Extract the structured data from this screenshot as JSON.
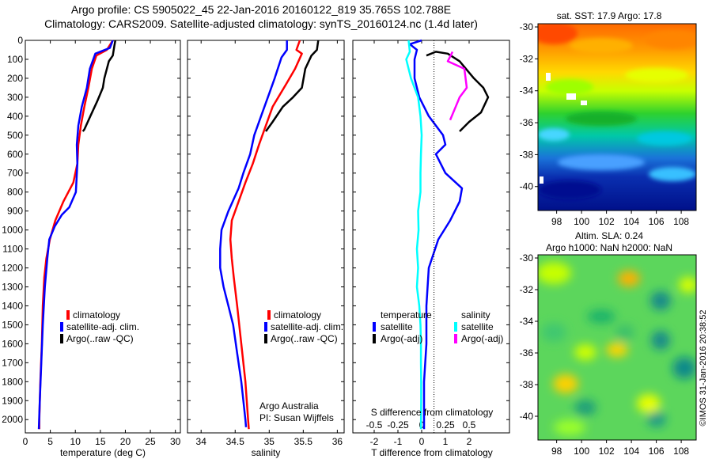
{
  "header": {
    "line1": "Argo profile: CS 5905022_45 22-Jan-2016 20160122_819 35.765S 102.788E",
    "line2": "Climatology: CARS2009. Satellite-adjusted climatology: synTS_20160124.nc (1.4d later)"
  },
  "sst_title": "sat. SST: 17.9 Argo: 17.8",
  "sla_title1": "Altim. SLA: 0.24",
  "sla_title2": "Argo h1000: NaN h2000: NaN",
  "imos_stamp": "©IMOS 31-Jan-2016 20:38:52",
  "colors": {
    "climatology": "#ff0000",
    "satellite": "#0000ff",
    "argo": "#000000",
    "salinity_satellite": "#00ffff",
    "salinity_argo": "#ff00ff"
  },
  "chart_data": [
    {
      "type": "line",
      "xlabel": "temperature (deg C)",
      "ylabel": "",
      "xlim": [
        0,
        31
      ],
      "ylim": [
        2070,
        0
      ],
      "xticks": [
        0,
        5,
        10,
        15,
        20,
        25,
        30
      ],
      "yticks": [
        0,
        100,
        200,
        300,
        400,
        500,
        600,
        700,
        800,
        900,
        1000,
        1100,
        1200,
        1300,
        1400,
        1500,
        1600,
        1700,
        1800,
        1900,
        2000
      ],
      "legend": [
        "climatology",
        "satellite-adj. clim.",
        "Argo(..raw -QC)"
      ],
      "legend_location": "lower-center",
      "series": [
        {
          "name": "climatology",
          "color": "#ff0000",
          "points": [
            [
              17.5,
              0
            ],
            [
              16.3,
              50
            ],
            [
              14.2,
              80
            ],
            [
              13.3,
              150
            ],
            [
              12.6,
              250
            ],
            [
              11.8,
              350
            ],
            [
              11.1,
              450
            ],
            [
              10.6,
              550
            ],
            [
              10.4,
              650
            ],
            [
              9.6,
              750
            ],
            [
              7.6,
              850
            ],
            [
              6.0,
              950
            ],
            [
              4.9,
              1050
            ],
            [
              4.2,
              1150
            ],
            [
              3.8,
              1250
            ],
            [
              3.5,
              1400
            ],
            [
              3.3,
              1600
            ],
            [
              3.0,
              1800
            ],
            [
              2.8,
              2000
            ],
            [
              2.8,
              2050
            ]
          ]
        },
        {
          "name": "satellite-adj. clim.",
          "color": "#0000ff",
          "points": [
            [
              17.5,
              0
            ],
            [
              16.9,
              40
            ],
            [
              14.0,
              70
            ],
            [
              12.9,
              150
            ],
            [
              12.3,
              250
            ],
            [
              11.3,
              350
            ],
            [
              10.6,
              450
            ],
            [
              10.3,
              550
            ],
            [
              10.4,
              650
            ],
            [
              10.1,
              800
            ],
            [
              8.8,
              880
            ],
            [
              7.3,
              920
            ],
            [
              5.9,
              980
            ],
            [
              4.8,
              1050
            ],
            [
              4.4,
              1150
            ],
            [
              3.9,
              1300
            ],
            [
              3.5,
              1500
            ],
            [
              3.2,
              1700
            ],
            [
              2.9,
              1900
            ],
            [
              2.7,
              2050
            ]
          ]
        },
        {
          "name": "Argo(..raw -QC)",
          "color": "#000000",
          "points": [
            [
              18.0,
              0
            ],
            [
              17.8,
              30
            ],
            [
              17.5,
              80
            ],
            [
              16.7,
              110
            ],
            [
              15.8,
              200
            ],
            [
              15.5,
              250
            ],
            [
              14.4,
              320
            ],
            [
              13.0,
              400
            ],
            [
              11.8,
              470
            ],
            [
              11.5,
              480
            ]
          ]
        }
      ]
    },
    {
      "type": "line",
      "xlabel": "salinity",
      "ylabel": "",
      "xlim": [
        33.8,
        36.1
      ],
      "ylim": [
        2070,
        0
      ],
      "xticks": [
        34,
        34.5,
        35,
        35.5,
        36
      ],
      "legend": [
        "climatology",
        "satellite-adj. clim.",
        "Argo(..raw -QC)"
      ],
      "legend_location": "lower-center",
      "annotation": [
        "Argo Australia",
        "PI: Susan Wijffels"
      ],
      "series": [
        {
          "name": "climatology",
          "color": "#ff0000",
          "points": [
            [
              35.45,
              0
            ],
            [
              35.4,
              50
            ],
            [
              35.48,
              70
            ],
            [
              35.38,
              150
            ],
            [
              35.25,
              230
            ],
            [
              35.05,
              350
            ],
            [
              34.95,
              450
            ],
            [
              34.85,
              550
            ],
            [
              34.76,
              650
            ],
            [
              34.65,
              750
            ],
            [
              34.55,
              850
            ],
            [
              34.45,
              950
            ],
            [
              34.43,
              1050
            ],
            [
              34.45,
              1150
            ],
            [
              34.48,
              1250
            ],
            [
              34.53,
              1400
            ],
            [
              34.59,
              1600
            ],
            [
              34.65,
              1800
            ],
            [
              34.69,
              2000
            ],
            [
              34.7,
              2050
            ]
          ]
        },
        {
          "name": "satellite-adj. clim.",
          "color": "#0000ff",
          "points": [
            [
              35.26,
              0
            ],
            [
              35.26,
              50
            ],
            [
              35.18,
              90
            ],
            [
              35.08,
              200
            ],
            [
              34.98,
              300
            ],
            [
              34.88,
              400
            ],
            [
              34.78,
              500
            ],
            [
              34.72,
              600
            ],
            [
              34.62,
              700
            ],
            [
              34.55,
              780
            ],
            [
              34.4,
              900
            ],
            [
              34.3,
              1000
            ],
            [
              34.28,
              1100
            ],
            [
              34.28,
              1200
            ],
            [
              34.33,
              1300
            ],
            [
              34.4,
              1400
            ],
            [
              34.47,
              1500
            ],
            [
              34.53,
              1650
            ],
            [
              34.59,
              1800
            ],
            [
              34.65,
              2000
            ],
            [
              34.66,
              2040
            ]
          ]
        },
        {
          "name": "Argo(..raw -QC)",
          "color": "#000000",
          "points": [
            [
              35.72,
              0
            ],
            [
              35.7,
              50
            ],
            [
              35.62,
              80
            ],
            [
              35.53,
              150
            ],
            [
              35.48,
              250
            ],
            [
              35.35,
              300
            ],
            [
              35.2,
              350
            ],
            [
              35.05,
              430
            ],
            [
              34.95,
              480
            ]
          ]
        }
      ]
    },
    {
      "type": "line",
      "xlabel": "T difference from climatology",
      "ylabel": "",
      "xlim": [
        -2.9,
        3.7
      ],
      "ylim": [
        2070,
        0
      ],
      "xticks": [
        -2,
        -1,
        0,
        1,
        2
      ],
      "secondary_xlabel": "S difference from climatology",
      "secondary_xticks": [
        -0.5,
        -0.25,
        0,
        0.25,
        0.5
      ],
      "legend": [
        "temperature",
        "satellite",
        "Argo(-adj)",
        "salinity",
        "satellite",
        "Argo(-adj)"
      ],
      "legend_location": "lower-center",
      "series": [
        {
          "name": "satellite",
          "legend_group": "temperature",
          "color": "#0000ff",
          "points": [
            [
              0.0,
              0
            ],
            [
              -0.5,
              20
            ],
            [
              -0.2,
              50
            ],
            [
              -0.3,
              100
            ],
            [
              -0.3,
              200
            ],
            [
              -0.1,
              300
            ],
            [
              0.3,
              400
            ],
            [
              0.9,
              500
            ],
            [
              1.0,
              550
            ],
            [
              0.6,
              600
            ],
            [
              1.0,
              700
            ],
            [
              1.7,
              780
            ],
            [
              1.6,
              850
            ],
            [
              1.2,
              950
            ],
            [
              0.7,
              1050
            ],
            [
              0.3,
              1200
            ],
            [
              0.2,
              1400
            ],
            [
              0.2,
              1600
            ],
            [
              0.1,
              1800
            ],
            [
              0.1,
              2050
            ]
          ]
        },
        {
          "name": "Argo(-adj)",
          "legend_group": "temperature",
          "color": "#000000",
          "points": [
            [
              0.2,
              80
            ],
            [
              0.6,
              60
            ],
            [
              1.1,
              70
            ],
            [
              1.6,
              110
            ],
            [
              2.2,
              200
            ],
            [
              2.6,
              250
            ],
            [
              2.8,
              300
            ],
            [
              2.5,
              380
            ],
            [
              2.0,
              430
            ],
            [
              1.6,
              480
            ]
          ]
        },
        {
          "name": "satellite",
          "legend_group": "salinity",
          "color": "#00ffff",
          "points": [
            [
              -0.55,
              0
            ],
            [
              -0.5,
              60
            ],
            [
              -0.65,
              100
            ],
            [
              -0.45,
              200
            ],
            [
              -0.15,
              300
            ],
            [
              -0.05,
              400
            ],
            [
              0.0,
              500
            ],
            [
              -0.03,
              600
            ],
            [
              -0.05,
              700
            ],
            [
              -0.05,
              800
            ],
            [
              -0.15,
              900
            ],
            [
              -0.13,
              1000
            ],
            [
              -0.2,
              1100
            ],
            [
              -0.15,
              1200
            ],
            [
              -0.2,
              1300
            ],
            [
              -0.1,
              1400
            ],
            [
              -0.05,
              1500
            ],
            [
              -0.03,
              1600
            ],
            [
              -0.03,
              1700
            ],
            [
              -0.02,
              1800
            ],
            [
              -0.02,
              1900
            ],
            [
              -0.03,
              2050
            ]
          ]
        },
        {
          "name": "Argo(-adj)",
          "legend_group": "salinity",
          "color": "#ff00ff",
          "points": [
            [
              1.3,
              60
            ],
            [
              1.1,
              110
            ],
            [
              1.8,
              150
            ],
            [
              1.9,
              250
            ],
            [
              1.6,
              300
            ],
            [
              1.4,
              360
            ],
            [
              1.2,
              420
            ]
          ]
        }
      ]
    },
    {
      "type": "heatmap",
      "title": "sat. SST: 17.9 Argo: 17.8",
      "xticks": [
        98,
        100,
        102,
        104,
        106,
        108
      ],
      "yticks": [
        -30,
        -32,
        -34,
        -36,
        -38,
        -40
      ],
      "xlim": [
        96.5,
        109.2
      ],
      "ylim": [
        -41.5,
        -29.8
      ],
      "colormap": "jet"
    },
    {
      "type": "heatmap",
      "title": "Altim. SLA: 0.24 / Argo h1000: NaN h2000: NaN",
      "xticks": [
        98,
        100,
        102,
        104,
        106,
        108
      ],
      "yticks": [
        -30,
        -32,
        -34,
        -36,
        -38,
        -40
      ],
      "xlim": [
        96.5,
        109.2
      ],
      "ylim": [
        -41.5,
        -29.8
      ],
      "colormap": "jet"
    }
  ]
}
